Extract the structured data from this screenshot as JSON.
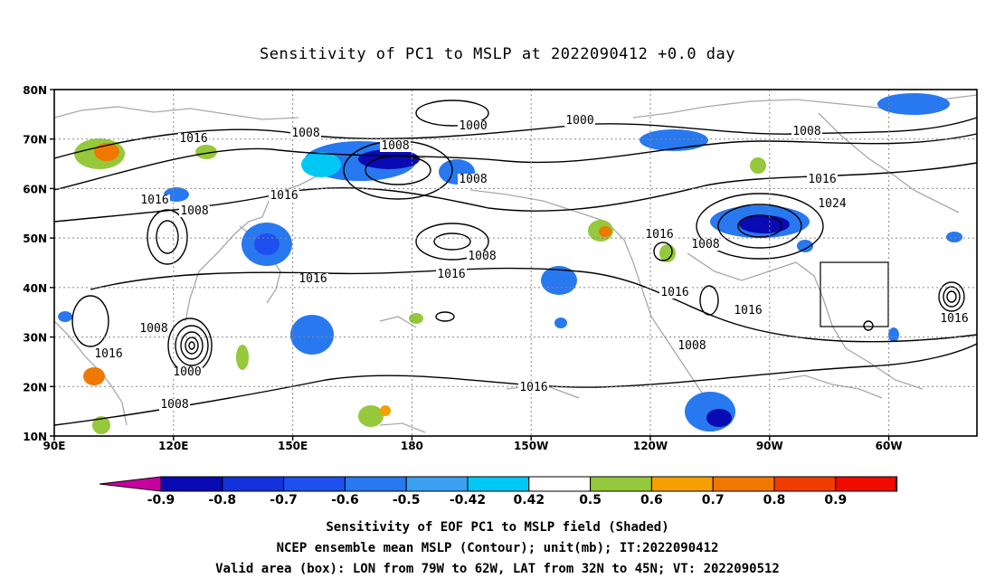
{
  "title": "Sensitivity of PC1 to MSLP at 2022090412 +0.0 day",
  "lat_labels": [
    "80N",
    "70N",
    "60N",
    "50N",
    "40N",
    "30N",
    "20N",
    "10N"
  ],
  "lon_labels": [
    "90E",
    "120E",
    "150E",
    "180",
    "150W",
    "120W",
    "90W",
    "60W"
  ],
  "contour_labels": [
    "1016",
    "1008",
    "1008",
    "1000",
    "1000",
    "1008",
    "1016",
    "1008",
    "1008",
    "1016",
    "1024",
    "1016",
    "1016",
    "1008",
    "1008",
    "1016",
    "1016",
    "1016",
    "1008",
    "1016",
    "1016",
    "1016",
    "1008",
    "1000",
    "1008",
    "1016"
  ],
  "colorbar": {
    "ticks": [
      "-0.9",
      "-0.8",
      "-0.7",
      "-0.6",
      "-0.5",
      "-0.42",
      "0.42",
      "0.5",
      "0.6",
      "0.7",
      "0.8",
      "0.9"
    ],
    "colors": [
      "#c800a0",
      "#0a0ab4",
      "#1432dc",
      "#1e50f0",
      "#2878f0",
      "#3ca0f0",
      "#00c8f5",
      "#ffffff",
      "#96c83c",
      "#f5a000",
      "#f07800",
      "#f03c00",
      "#f00a00",
      "#f596c8"
    ]
  },
  "footer": {
    "line1": "Sensitivity of EOF PC1 to MSLP field (Shaded)",
    "line2": "NCEP ensemble mean MSLP (Contour); unit(mb); IT:2022090412",
    "line3": "Valid area (box): LON from 79W to 62W, LAT from 32N to 45N; VT: 2022090512"
  }
}
